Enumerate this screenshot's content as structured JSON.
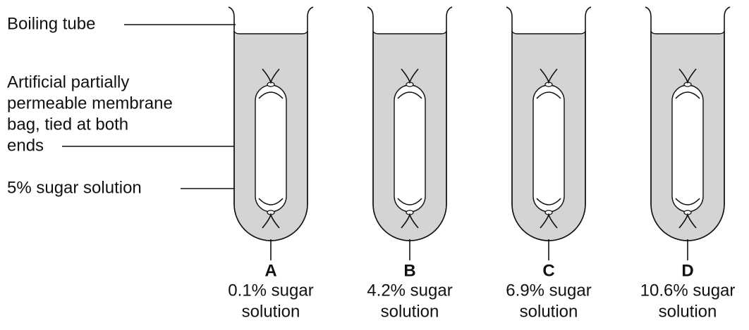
{
  "labels": {
    "boiling_tube": "Boiling tube",
    "membrane": [
      "Artificial partially",
      "permeable membrane",
      "bag, tied at both",
      "ends"
    ],
    "sugar": "5% sugar solution"
  },
  "tubes": [
    {
      "letter": "A",
      "solution": [
        "0.1% sugar",
        "solution"
      ]
    },
    {
      "letter": "B",
      "solution": [
        "4.2% sugar",
        "solution"
      ]
    },
    {
      "letter": "C",
      "solution": [
        "6.9% sugar",
        "solution"
      ]
    },
    {
      "letter": "D",
      "solution": [
        "10.6% sugar",
        "solution"
      ]
    }
  ]
}
